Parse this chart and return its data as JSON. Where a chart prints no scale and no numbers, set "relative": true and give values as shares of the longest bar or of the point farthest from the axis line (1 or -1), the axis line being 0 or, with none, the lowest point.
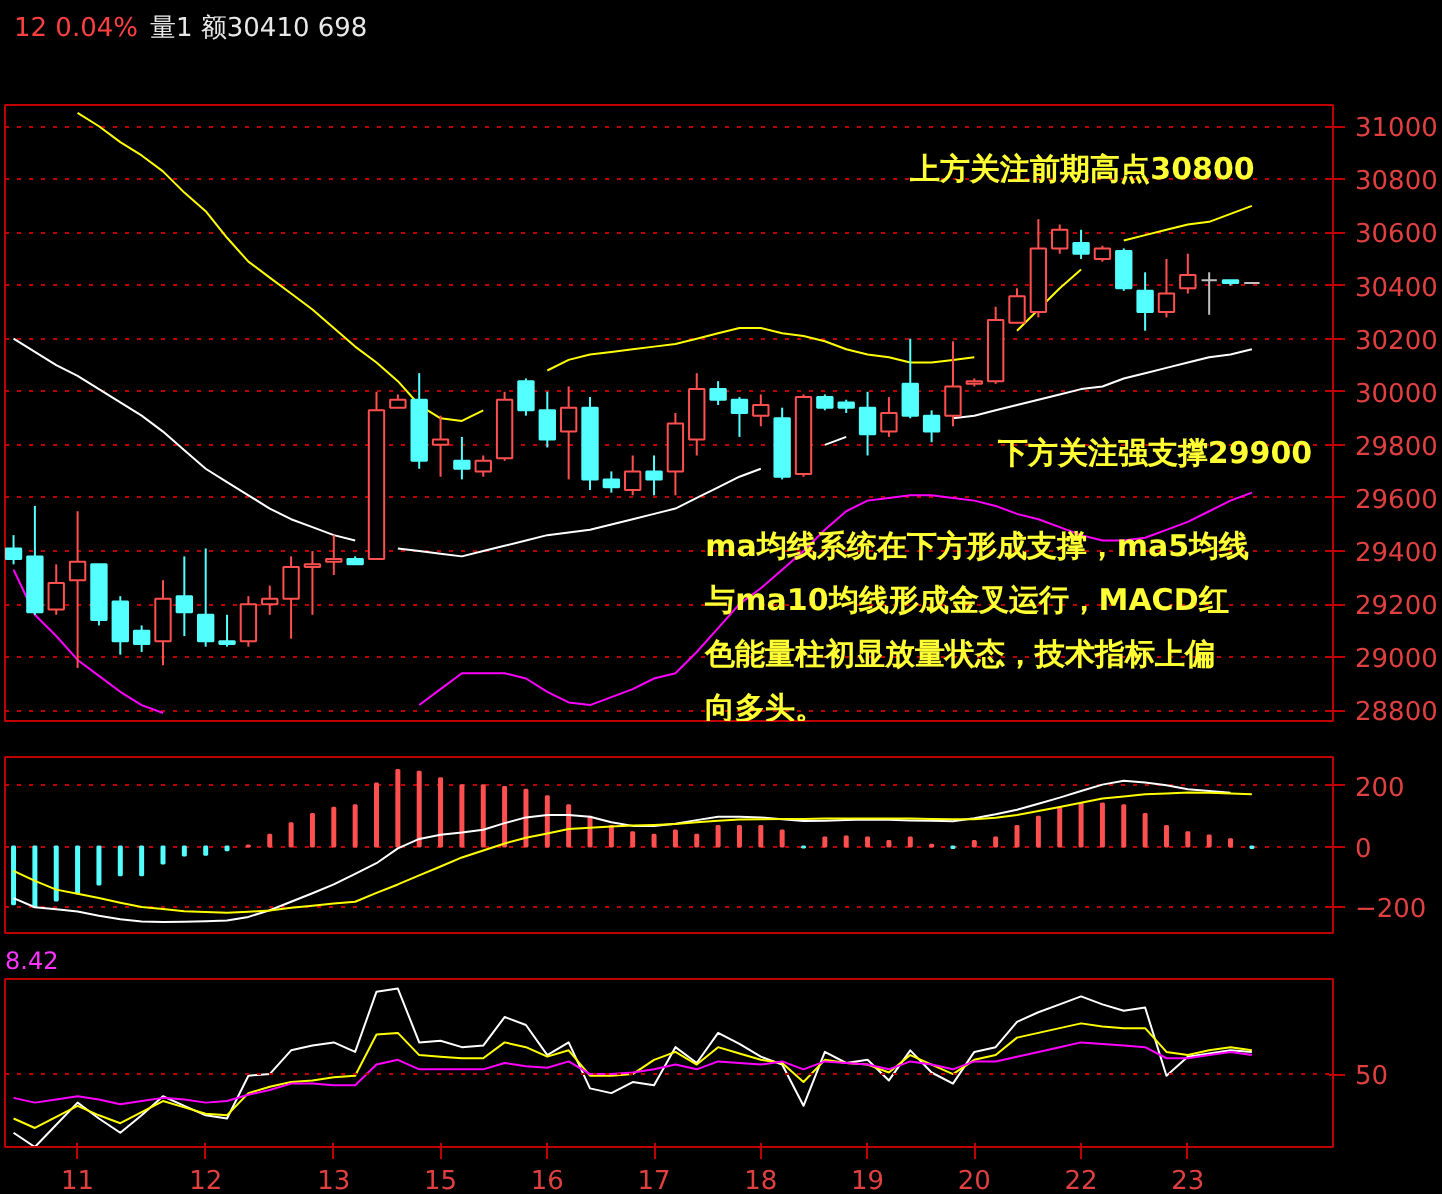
{
  "chart_data": [
    {
      "type": "candlestick",
      "ylim": [
        28760,
        31080
      ],
      "yticks": [
        28800,
        29000,
        29200,
        29400,
        29600,
        29800,
        30000,
        30200,
        30400,
        30600,
        30800,
        31000
      ],
      "grid": "y",
      "tick_labels": "y",
      "annotations": [
        "12 0.04%",
        "量1 额30410 698",
        "上方关注前期高点30800",
        "下方关注强支撑29900",
        "ma均线系统在下方形成支撑，ma5均线与ma10均线形成金叉运行，MACD红色能量柱初显放量状态，技术指标上偏向多头。"
      ],
      "categories": [
        null,
        null,
        null,
        "11",
        null,
        null,
        null,
        null,
        null,
        "12",
        null,
        null,
        null,
        null,
        null,
        "13",
        null,
        null,
        null,
        null,
        "15",
        null,
        null,
        null,
        null,
        "16",
        null,
        null,
        null,
        null,
        "17",
        null,
        null,
        null,
        null,
        "18",
        null,
        null,
        null,
        null,
        "19",
        null,
        null,
        null,
        null,
        "20",
        null,
        null,
        null,
        null,
        "22",
        null,
        null,
        null,
        null,
        "23",
        null,
        null,
        null
      ],
      "ohlc": [
        [
          29410,
          29460,
          29350,
          29370
        ],
        [
          29380,
          29570,
          29160,
          29170
        ],
        [
          29180,
          29350,
          29160,
          29280
        ],
        [
          29290,
          29550,
          28960,
          29360
        ],
        [
          29350,
          29350,
          29120,
          29140
        ],
        [
          29210,
          29230,
          29010,
          29060
        ],
        [
          29100,
          29120,
          29020,
          29050
        ],
        [
          29060,
          29290,
          28970,
          29220
        ],
        [
          29230,
          29380,
          29080,
          29170
        ],
        [
          29160,
          29410,
          29040,
          29060
        ],
        [
          29060,
          29160,
          29040,
          29050
        ],
        [
          29060,
          29230,
          29040,
          29200
        ],
        [
          29200,
          29270,
          29160,
          29220
        ],
        [
          29220,
          29380,
          29070,
          29340
        ],
        [
          29340,
          29400,
          29160,
          29350
        ],
        [
          29360,
          29460,
          29310,
          29370
        ],
        [
          29370,
          29380,
          29350,
          29350
        ],
        [
          29370,
          30000,
          29370,
          29930
        ],
        [
          29940,
          29990,
          29940,
          29970
        ],
        [
          29970,
          30070,
          29710,
          29740
        ],
        [
          29800,
          29910,
          29680,
          29820
        ],
        [
          29740,
          29830,
          29670,
          29710
        ],
        [
          29700,
          29760,
          29680,
          29740
        ],
        [
          29750,
          30000,
          29740,
          29970
        ],
        [
          30040,
          30050,
          29910,
          29930
        ],
        [
          29930,
          30000,
          29790,
          29820
        ],
        [
          29850,
          30020,
          29670,
          29940
        ],
        [
          29940,
          29980,
          29630,
          29670
        ],
        [
          29670,
          29700,
          29620,
          29640
        ],
        [
          29630,
          29760,
          29610,
          29700
        ],
        [
          29700,
          29760,
          29610,
          29670
        ],
        [
          29700,
          29920,
          29610,
          29880
        ],
        [
          29820,
          30070,
          29760,
          30010
        ],
        [
          30010,
          30040,
          29950,
          29970
        ],
        [
          29970,
          29980,
          29830,
          29920
        ],
        [
          29910,
          29990,
          29870,
          29950
        ],
        [
          29900,
          29940,
          29670,
          29680
        ],
        [
          29690,
          29990,
          29680,
          29980
        ],
        [
          29980,
          29990,
          29930,
          29940
        ],
        [
          29960,
          29970,
          29920,
          29940
        ],
        [
          29940,
          30000,
          29760,
          29840
        ],
        [
          29850,
          29980,
          29830,
          29920
        ],
        [
          30030,
          30200,
          29900,
          29910
        ],
        [
          29910,
          29930,
          29810,
          29850
        ],
        [
          29910,
          30190,
          29870,
          30020
        ],
        [
          30030,
          30050,
          30020,
          30040
        ],
        [
          30040,
          30320,
          30030,
          30270
        ],
        [
          30260,
          30390,
          30260,
          30360
        ],
        [
          30300,
          30650,
          30280,
          30540
        ],
        [
          30540,
          30630,
          30520,
          30610
        ],
        [
          30560,
          30610,
          30500,
          30520
        ],
        [
          30500,
          30550,
          30490,
          30540
        ],
        [
          30530,
          30540,
          30380,
          30390
        ],
        [
          30380,
          30450,
          30230,
          30300
        ],
        [
          30300,
          30500,
          30280,
          30370
        ],
        [
          30390,
          30520,
          30370,
          30440
        ],
        [
          30420,
          30450,
          30290,
          30420
        ],
        [
          30420,
          30420,
          30400,
          30410
        ],
        [
          30410,
          30410,
          30410,
          30410
        ]
      ],
      "colors": [
        "#54ffff",
        "#54ffff",
        "#ff5050",
        "#ff5050",
        "#54ffff",
        "#54ffff",
        "#54ffff",
        "#ff5050",
        "#54ffff",
        "#54ffff",
        "#54ffff",
        "#ff5050",
        "#ff5050",
        "#ff5050",
        "#ff5050",
        "#ff5050",
        "#54ffff",
        "#ff5050",
        "#ff5050",
        "#54ffff",
        "#ff5050",
        "#54ffff",
        "#ff5050",
        "#ff5050",
        "#54ffff",
        "#54ffff",
        "#ff5050",
        "#54ffff",
        "#54ffff",
        "#ff5050",
        "#54ffff",
        "#ff5050",
        "#ff5050",
        "#54ffff",
        "#54ffff",
        "#ff5050",
        "#54ffff",
        "#ff5050",
        "#54ffff",
        "#54ffff",
        "#54ffff",
        "#ff5050",
        "#54ffff",
        "#54ffff",
        "#ff5050",
        "#ff5050",
        "#ff5050",
        "#ff5050",
        "#ff5050",
        "#ff5050",
        "#54ffff",
        "#ff5050",
        "#54ffff",
        "#54ffff",
        "#ff5050",
        "#ff5050",
        "#c0c0c0",
        "#54ffff",
        "#c0c0c0"
      ],
      "series": [
        {
          "type": "line",
          "color": "#ffff00",
          "values": [
            null,
            null,
            null,
            31050,
            31000,
            30940,
            30890,
            30830,
            30750,
            30680,
            30580,
            30490,
            30430,
            30370,
            30310,
            30240,
            30170,
            30110,
            30040,
            29950,
            29900,
            29890,
            29930,
            null,
            null,
            30080,
            30120,
            30140,
            30150,
            30160,
            30170,
            30180,
            30200,
            30220,
            30240,
            30240,
            30220,
            30210,
            30190,
            30160,
            30140,
            30130,
            30110,
            30110,
            30120,
            30130,
            null,
            30230,
            30310,
            30390,
            30460,
            null,
            30570,
            30590,
            30610,
            30630,
            30640,
            30670,
            30700
          ]
        },
        {
          "type": "line",
          "color": "#ffffff",
          "values": [
            30200,
            30150,
            30100,
            30060,
            30010,
            29960,
            29910,
            29850,
            29780,
            29710,
            29660,
            29610,
            29560,
            29520,
            29490,
            29460,
            29440,
            null,
            29410,
            29400,
            29390,
            29380,
            29400,
            29420,
            29440,
            29460,
            29470,
            29480,
            29500,
            29520,
            29540,
            29560,
            29600,
            29640,
            29680,
            29710,
            null,
            null,
            29800,
            29830,
            null,
            null,
            null,
            null,
            29900,
            29910,
            29930,
            29950,
            29970,
            29990,
            30010,
            30020,
            30050,
            30070,
            30090,
            30110,
            30130,
            30140,
            30160
          ]
        },
        {
          "type": "line",
          "color": "#ff00ff",
          "values": [
            29330,
            29160,
            29080,
            28990,
            28930,
            28870,
            28820,
            28790,
            null,
            null,
            null,
            null,
            null,
            null,
            null,
            null,
            null,
            null,
            null,
            28820,
            28880,
            28940,
            28940,
            28940,
            28920,
            28870,
            28830,
            28820,
            28850,
            28880,
            28920,
            28940,
            29020,
            29110,
            29200,
            29260,
            29330,
            29400,
            29480,
            29550,
            29590,
            29600,
            29610,
            29610,
            29600,
            29590,
            29570,
            29540,
            29520,
            29490,
            29460,
            29440,
            29440,
            29450,
            29480,
            29510,
            29550,
            29590,
            29620
          ]
        }
      ]
    },
    {
      "type": "bar",
      "ylim": [
        -285,
        295
      ],
      "yticks": [
        -200,
        0,
        200
      ],
      "grid": "y",
      "tick_labels": "y",
      "categories": [
        null,
        null,
        null,
        "11",
        null,
        null,
        null,
        null,
        null,
        "12",
        null,
        null,
        null,
        null,
        null,
        "13",
        null,
        null,
        null,
        null,
        "15",
        null,
        null,
        null,
        null,
        "16",
        null,
        null,
        null,
        null,
        "17",
        null,
        null,
        null,
        null,
        "18",
        null,
        null,
        null,
        null,
        "19",
        null,
        null,
        null,
        null,
        "20",
        null,
        null,
        null,
        null,
        "22",
        null,
        null,
        null,
        null,
        "23",
        null,
        null,
        null
      ],
      "values": [
        -190,
        -199,
        -178,
        -154,
        -125,
        -95,
        -95,
        -56,
        -30,
        -27,
        -12,
        3,
        39,
        77,
        107,
        128,
        136,
        208,
        252,
        246,
        225,
        202,
        202,
        196,
        187,
        166,
        136,
        98,
        68,
        47,
        39,
        53,
        39,
        68,
        68,
        68,
        53,
        -3,
        30,
        33,
        30,
        18,
        30,
        6,
        -5,
        18,
        30,
        68,
        98,
        128,
        142,
        142,
        136,
        107,
        68,
        47,
        36,
        24,
        -5
      ],
      "colors": [
        "#54ffff",
        "#54ffff",
        "#54ffff",
        "#54ffff",
        "#54ffff",
        "#54ffff",
        "#54ffff",
        "#54ffff",
        "#54ffff",
        "#54ffff",
        "#54ffff",
        "#ff5050",
        "#ff5050",
        "#ff5050",
        "#ff5050",
        "#ff5050",
        "#ff5050",
        "#ff5050",
        "#ff5050",
        "#ff5050",
        "#ff5050",
        "#ff5050",
        "#ff5050",
        "#ff5050",
        "#ff5050",
        "#ff5050",
        "#ff5050",
        "#ff5050",
        "#ff5050",
        "#ff5050",
        "#ff5050",
        "#ff5050",
        "#ff5050",
        "#ff5050",
        "#ff5050",
        "#ff5050",
        "#ff5050",
        "#54ffff",
        "#ff5050",
        "#ff5050",
        "#ff5050",
        "#ff5050",
        "#ff5050",
        "#ff5050",
        "#54ffff",
        "#ff5050",
        "#ff5050",
        "#ff5050",
        "#ff5050",
        "#ff5050",
        "#ff5050",
        "#ff5050",
        "#ff5050",
        "#ff5050",
        "#ff5050",
        "#ff5050",
        "#ff5050",
        "#ff5050",
        "#54ffff"
      ],
      "series": [
        {
          "type": "line",
          "color": "#ffffff",
          "values": [
            -170,
            -200,
            -207,
            -214,
            -228,
            -240,
            -247,
            -249,
            -248,
            -246,
            -244,
            -232,
            -210,
            -182,
            -154,
            -125,
            -90,
            -55,
            -6,
            25,
            39,
            46,
            55,
            77,
            96,
            104,
            104,
            98,
            80,
            68,
            68,
            75,
            87,
            98,
            98,
            96,
            90,
            84,
            85,
            87,
            89,
            88,
            86,
            85,
            83,
            93,
            106,
            121,
            141,
            161,
            183,
            204,
            217,
            211,
            202,
            189,
            183,
            177,
            null
          ]
        },
        {
          "type": "line",
          "color": "#ffff00",
          "values": [
            -80,
            -113,
            -142,
            -156,
            -170,
            -185,
            -199,
            -206,
            -213,
            -216,
            -218,
            -215,
            -211,
            -202,
            -195,
            -188,
            -182,
            -153,
            -125,
            -95,
            -66,
            -36,
            -13,
            10,
            29,
            43,
            58,
            62,
            66,
            69,
            71,
            74,
            80,
            85,
            89,
            90,
            91,
            91,
            92,
            92,
            92,
            92,
            92,
            91,
            90,
            90,
            95,
            104,
            117,
            130,
            144,
            158,
            165,
            172,
            175,
            178,
            177,
            175,
            172
          ]
        }
      ]
    },
    {
      "type": "line",
      "relative": true,
      "tick_labels": "x",
      "categories": [
        null,
        null,
        null,
        "11",
        null,
        null,
        null,
        null,
        null,
        "12",
        null,
        null,
        null,
        null,
        null,
        "13",
        null,
        null,
        null,
        null,
        "15",
        null,
        null,
        null,
        null,
        "16",
        null,
        null,
        null,
        null,
        "17",
        null,
        null,
        null,
        null,
        "18",
        null,
        null,
        null,
        null,
        "19",
        null,
        null,
        null,
        null,
        "20",
        null,
        null,
        null,
        null,
        "22",
        null,
        null,
        null,
        null,
        "23",
        null,
        null,
        null
      ],
      "annotations": [
        "8.42",
        "50"
      ],
      "ref_lines": [
        {
          "axis": "y",
          "value": 0.46,
          "color": "#c00000",
          "line_style": "dotted"
        }
      ],
      "series": [
        {
          "color": "#ffffff",
          "values": [
            0.09,
            0,
            0.14,
            0.28,
            0.18,
            0.09,
            0.2,
            0.32,
            0.26,
            0.2,
            0.18,
            0.45,
            0.46,
            0.61,
            0.64,
            0.66,
            0.6,
            0.98,
            1.0,
            0.66,
            0.67,
            0.63,
            0.64,
            0.82,
            0.77,
            0.58,
            0.66,
            0.37,
            0.34,
            0.41,
            0.39,
            0.63,
            0.53,
            0.72,
            0.65,
            0.57,
            0.52,
            0.26,
            0.6,
            0.53,
            0.55,
            0.42,
            0.61,
            0.47,
            0.4,
            0.6,
            0.63,
            0.79,
            0.85,
            0.9,
            0.95,
            0.9,
            0.86,
            0.88,
            0.45,
            0.57,
            0.59,
            0.61,
            0.6
          ]
        },
        {
          "color": "#ffff00",
          "values": [
            0.18,
            0.12,
            0.19,
            0.26,
            0.2,
            0.15,
            0.22,
            0.29,
            0.25,
            0.21,
            0.2,
            0.34,
            0.38,
            0.41,
            0.42,
            0.44,
            0.45,
            0.71,
            0.72,
            0.58,
            0.57,
            0.56,
            0.56,
            0.66,
            0.63,
            0.57,
            0.61,
            0.45,
            0.45,
            0.46,
            0.55,
            0.6,
            0.52,
            0.63,
            0.59,
            0.55,
            0.53,
            0.41,
            0.55,
            0.53,
            0.52,
            0.47,
            0.58,
            0.52,
            0.46,
            0.55,
            0.58,
            0.69,
            0.72,
            0.75,
            0.78,
            0.76,
            0.75,
            0.75,
            0.6,
            0.58,
            0.61,
            0.63,
            0.61
          ]
        },
        {
          "color": "#ff00ff",
          "values": [
            0.31,
            0.28,
            0.3,
            0.32,
            0.3,
            0.27,
            0.29,
            0.31,
            0.3,
            0.28,
            0.29,
            0.33,
            0.36,
            0.4,
            0.4,
            0.39,
            0.39,
            0.52,
            0.55,
            0.49,
            0.49,
            0.49,
            0.49,
            0.53,
            0.51,
            0.5,
            0.54,
            0.46,
            0.46,
            0.47,
            0.49,
            0.52,
            0.49,
            0.54,
            0.53,
            0.52,
            0.54,
            0.49,
            0.54,
            0.53,
            0.52,
            0.49,
            0.54,
            0.52,
            0.49,
            0.54,
            0.54,
            0.57,
            0.6,
            0.63,
            0.66,
            0.65,
            0.64,
            0.63,
            0.56,
            0.56,
            0.58,
            0.6,
            0.58
          ]
        }
      ]
    }
  ]
}
